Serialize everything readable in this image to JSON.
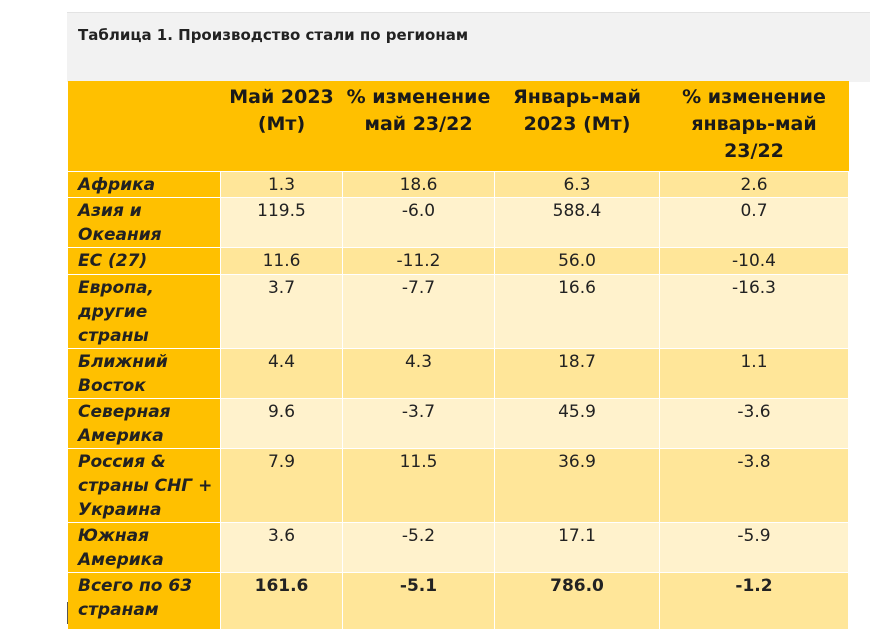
{
  "caption": "Таблица 1. Производство стали по регионам",
  "headers": [
    "",
    "Май 2023 (Мт)",
    "% изменение май 23/22",
    "Январь-май 2023 (Мт)",
    "% изменение январь-май 23/22"
  ],
  "rows": [
    {
      "region": "Африка",
      "may": "1.3",
      "may_change": "18.6",
      "jan_may": "6.3",
      "jan_may_change": "2.6"
    },
    {
      "region": "Азия и Океания",
      "may": "119.5",
      "may_change": "-6.0",
      "jan_may": "588.4",
      "jan_may_change": "0.7"
    },
    {
      "region": "ЕС (27)",
      "may": "11.6",
      "may_change": "-11.2",
      "jan_may": "56.0",
      "jan_may_change": "-10.4"
    },
    {
      "region": "Европа, другие страны",
      "may": "3.7",
      "may_change": "-7.7",
      "jan_may": "16.6",
      "jan_may_change": "-16.3"
    },
    {
      "region": "Ближний Восток",
      "may": "4.4",
      "may_change": "4.3",
      "jan_may": "18.7",
      "jan_may_change": "1.1"
    },
    {
      "region": "Северная Америка",
      "may": "9.6",
      "may_change": "-3.7",
      "jan_may": "45.9",
      "jan_may_change": "-3.6"
    },
    {
      "region": "Россия & страны СНГ + Украина",
      "may": "7.9",
      "may_change": "11.5",
      "jan_may": "36.9",
      "jan_may_change": "-3.8"
    },
    {
      "region": "Южная Америка",
      "may": "3.6",
      "may_change": "-5.2",
      "jan_may": "17.1",
      "jan_may_change": "-5.9"
    },
    {
      "region": "Всего по 63 странам",
      "may": "161.6",
      "may_change": "-5.1",
      "jan_may": "786.0",
      "jan_may_change": "-1.2"
    }
  ]
}
